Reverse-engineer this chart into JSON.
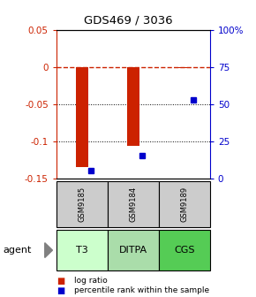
{
  "title": "GDS469 / 3036",
  "samples": [
    "GSM9185",
    "GSM9184",
    "GSM9189"
  ],
  "agents": [
    "T3",
    "DITPA",
    "CGS"
  ],
  "log_ratios": [
    -0.135,
    -0.107,
    -0.002
  ],
  "percentile_ranks": [
    5,
    15,
    53
  ],
  "ylim_left": [
    -0.15,
    0.05
  ],
  "ylim_right": [
    0,
    100
  ],
  "left_ticks": [
    0.05,
    0,
    -0.05,
    -0.1,
    -0.15
  ],
  "right_ticks": [
    100,
    75,
    50,
    25,
    0
  ],
  "bar_color": "#cc2200",
  "dot_color": "#0000cc",
  "agent_colors": [
    "#ccffcc",
    "#aaddaa",
    "#55cc55"
  ],
  "sample_bg": "#cccccc",
  "agent_label": "agent"
}
